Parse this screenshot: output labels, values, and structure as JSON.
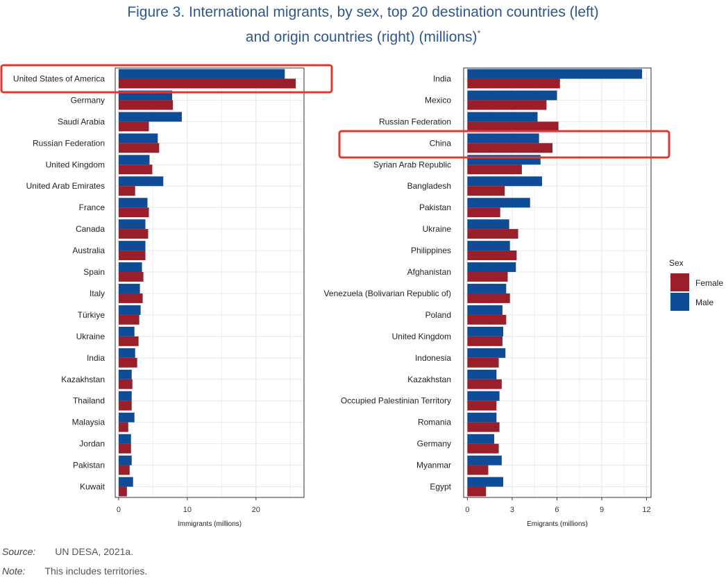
{
  "title": {
    "line1": "Figure 3. International migrants, by sex, top 20 destination countries (left)",
    "line2": "and origin countries (right) (millions)",
    "mark": "*"
  },
  "footnotes": {
    "source_label": "Source:",
    "source_text": "UN DESA, 2021a.",
    "note_label": "Note:",
    "note_text": "This includes territories."
  },
  "legend": {
    "title": "Sex",
    "items": [
      "Female",
      "Male"
    ]
  },
  "colors": {
    "female": "#9b1f2b",
    "male": "#0f4c97",
    "highlight": "#e8332e"
  },
  "chart_data": [
    {
      "type": "bar",
      "orientation": "horizontal",
      "xlabel": "Immigrants (millions)",
      "xlim": [
        -0.5,
        27
      ],
      "xticks": [
        0,
        10,
        20
      ],
      "highlight": "United States of America",
      "categories": [
        "United States of America",
        "Germany",
        "Saudi Arabia",
        "Russian Federation",
        "United Kingdom",
        "United Arab Emirates",
        "France",
        "Canada",
        "Australia",
        "Spain",
        "Italy",
        "Türkiye",
        "Ukraine",
        "India",
        "Kazakhstan",
        "Thailand",
        "Malaysia",
        "Jordan",
        "Pakistan",
        "Kuwait"
      ],
      "series": [
        {
          "name": "Male",
          "values": [
            24.2,
            7.8,
            9.2,
            5.7,
            4.5,
            6.5,
            4.2,
            3.9,
            3.9,
            3.4,
            3.1,
            3.2,
            2.3,
            2.4,
            1.9,
            1.9,
            2.3,
            1.8,
            1.9,
            2.1
          ]
        },
        {
          "name": "Female",
          "values": [
            25.8,
            7.9,
            4.4,
            5.9,
            4.9,
            2.4,
            4.4,
            4.3,
            3.9,
            3.6,
            3.5,
            3.0,
            2.9,
            2.7,
            2.0,
            1.9,
            1.4,
            1.8,
            1.6,
            1.2
          ]
        }
      ]
    },
    {
      "type": "bar",
      "orientation": "horizontal",
      "xlabel": "Emigrants (millions)",
      "xlim": [
        -0.25,
        12.3
      ],
      "xticks": [
        0,
        3,
        6,
        9,
        12
      ],
      "highlight": "China",
      "categories": [
        "India",
        "Mexico",
        "Russian Federation",
        "China",
        "Syrian Arab Republic",
        "Bangladesh",
        "Pakistan",
        "Ukraine",
        "Philippines",
        "Afghanistan",
        "Venezuela (Bolivarian Republic of)",
        "Poland",
        "United Kingdom",
        "Indonesia",
        "Kazakhstan",
        "Occupied Palestinian Territory",
        "Romania",
        "Germany",
        "Myanmar",
        "Egypt"
      ],
      "series": [
        {
          "name": "Male",
          "values": [
            11.7,
            6.0,
            4.7,
            4.8,
            4.9,
            5.0,
            4.2,
            2.8,
            2.85,
            3.25,
            2.6,
            2.35,
            2.4,
            2.55,
            1.95,
            2.15,
            1.95,
            1.8,
            2.3,
            2.4
          ]
        },
        {
          "name": "Female",
          "values": [
            6.2,
            5.3,
            6.1,
            5.7,
            3.65,
            2.5,
            2.2,
            3.4,
            3.3,
            2.7,
            2.85,
            2.6,
            2.35,
            2.1,
            2.3,
            1.95,
            2.15,
            2.1,
            1.4,
            1.25
          ]
        }
      ]
    }
  ]
}
